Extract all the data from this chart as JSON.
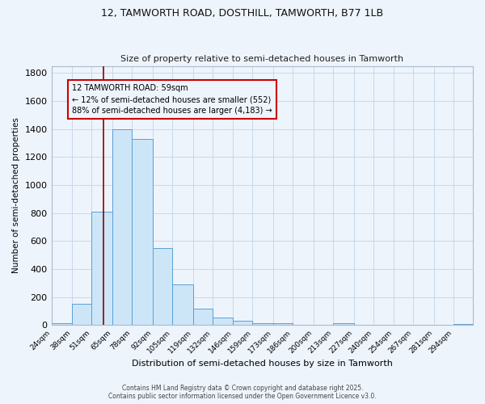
{
  "title1": "12, TAMWORTH ROAD, DOSTHILL, TAMWORTH, B77 1LB",
  "title2": "Size of property relative to semi-detached houses in Tamworth",
  "xlabel": "Distribution of semi-detached houses by size in Tamworth",
  "ylabel": "Number of semi-detached properties",
  "bin_labels": [
    "24sqm",
    "38sqm",
    "51sqm",
    "65sqm",
    "78sqm",
    "92sqm",
    "105sqm",
    "119sqm",
    "132sqm",
    "146sqm",
    "159sqm",
    "173sqm",
    "186sqm",
    "200sqm",
    "213sqm",
    "227sqm",
    "240sqm",
    "254sqm",
    "267sqm",
    "281sqm",
    "294sqm"
  ],
  "bin_edges": [
    24,
    38,
    51,
    65,
    78,
    92,
    105,
    119,
    132,
    146,
    159,
    173,
    186,
    200,
    213,
    227,
    240,
    254,
    267,
    281,
    294,
    307
  ],
  "values": [
    15,
    150,
    810,
    1400,
    1330,
    550,
    290,
    120,
    55,
    30,
    15,
    15,
    0,
    0,
    15,
    0,
    0,
    0,
    0,
    0,
    10
  ],
  "bar_facecolor": "#cde6f7",
  "bar_edgecolor": "#5a9fd4",
  "property_size": 59,
  "property_label": "12 TAMWORTH ROAD: 59sqm",
  "pct_smaller": 12,
  "pct_larger": 88,
  "n_smaller": 552,
  "n_larger": 4183,
  "vline_color": "#8b0000",
  "annotation_box_edgecolor": "#cc0000",
  "ylim": [
    0,
    1850
  ],
  "grid_color": "#c8d8e8",
  "background_color": "#eef4fc",
  "footer1": "Contains HM Land Registry data © Crown copyright and database right 2025.",
  "footer2": "Contains public sector information licensed under the Open Government Licence v3.0."
}
